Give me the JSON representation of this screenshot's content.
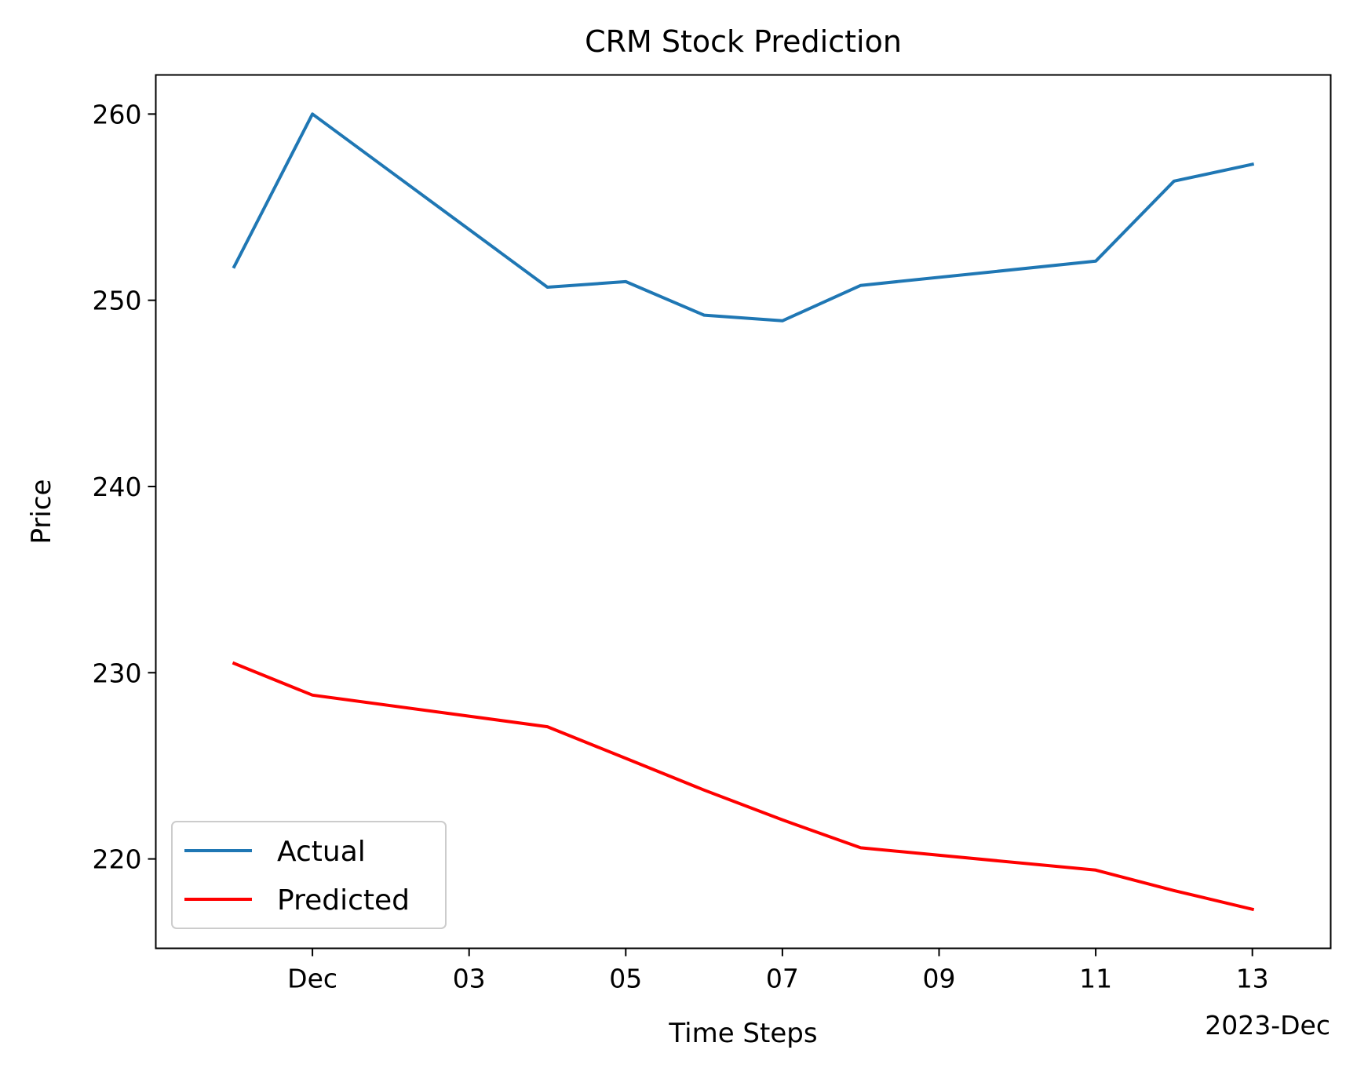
{
  "chart_data": {
    "type": "line",
    "title": "CRM Stock Prediction",
    "xlabel": "Time Steps",
    "ylabel": "Price",
    "x_offset_label": "2023-Dec",
    "x": [
      "2023-11-30",
      "2023-12-01",
      "2023-12-04",
      "2023-12-05",
      "2023-12-06",
      "2023-12-07",
      "2023-12-08",
      "2023-12-11",
      "2023-12-12",
      "2023-12-13"
    ],
    "xlim": [
      "2023-11-29",
      "2023-12-14"
    ],
    "xticks": [
      {
        "date": "2023-12-01",
        "label": "Dec"
      },
      {
        "date": "2023-12-03",
        "label": "03"
      },
      {
        "date": "2023-12-05",
        "label": "05"
      },
      {
        "date": "2023-12-07",
        "label": "07"
      },
      {
        "date": "2023-12-09",
        "label": "09"
      },
      {
        "date": "2023-12-11",
        "label": "11"
      },
      {
        "date": "2023-12-13",
        "label": "13"
      }
    ],
    "ylim": [
      215.2,
      262.1
    ],
    "yticks": [
      220,
      230,
      240,
      250,
      260
    ],
    "grid": false,
    "legend_position": "lower-left",
    "series": [
      {
        "name": "Actual",
        "color": "#1f77b4",
        "values": [
          251.8,
          260.0,
          250.7,
          251.0,
          249.2,
          248.9,
          250.8,
          252.1,
          256.4,
          257.3
        ]
      },
      {
        "name": "Predicted",
        "color": "#ff0000",
        "values": [
          230.5,
          228.8,
          227.1,
          225.4,
          223.7,
          222.1,
          220.6,
          219.4,
          218.3,
          217.3
        ]
      }
    ]
  }
}
